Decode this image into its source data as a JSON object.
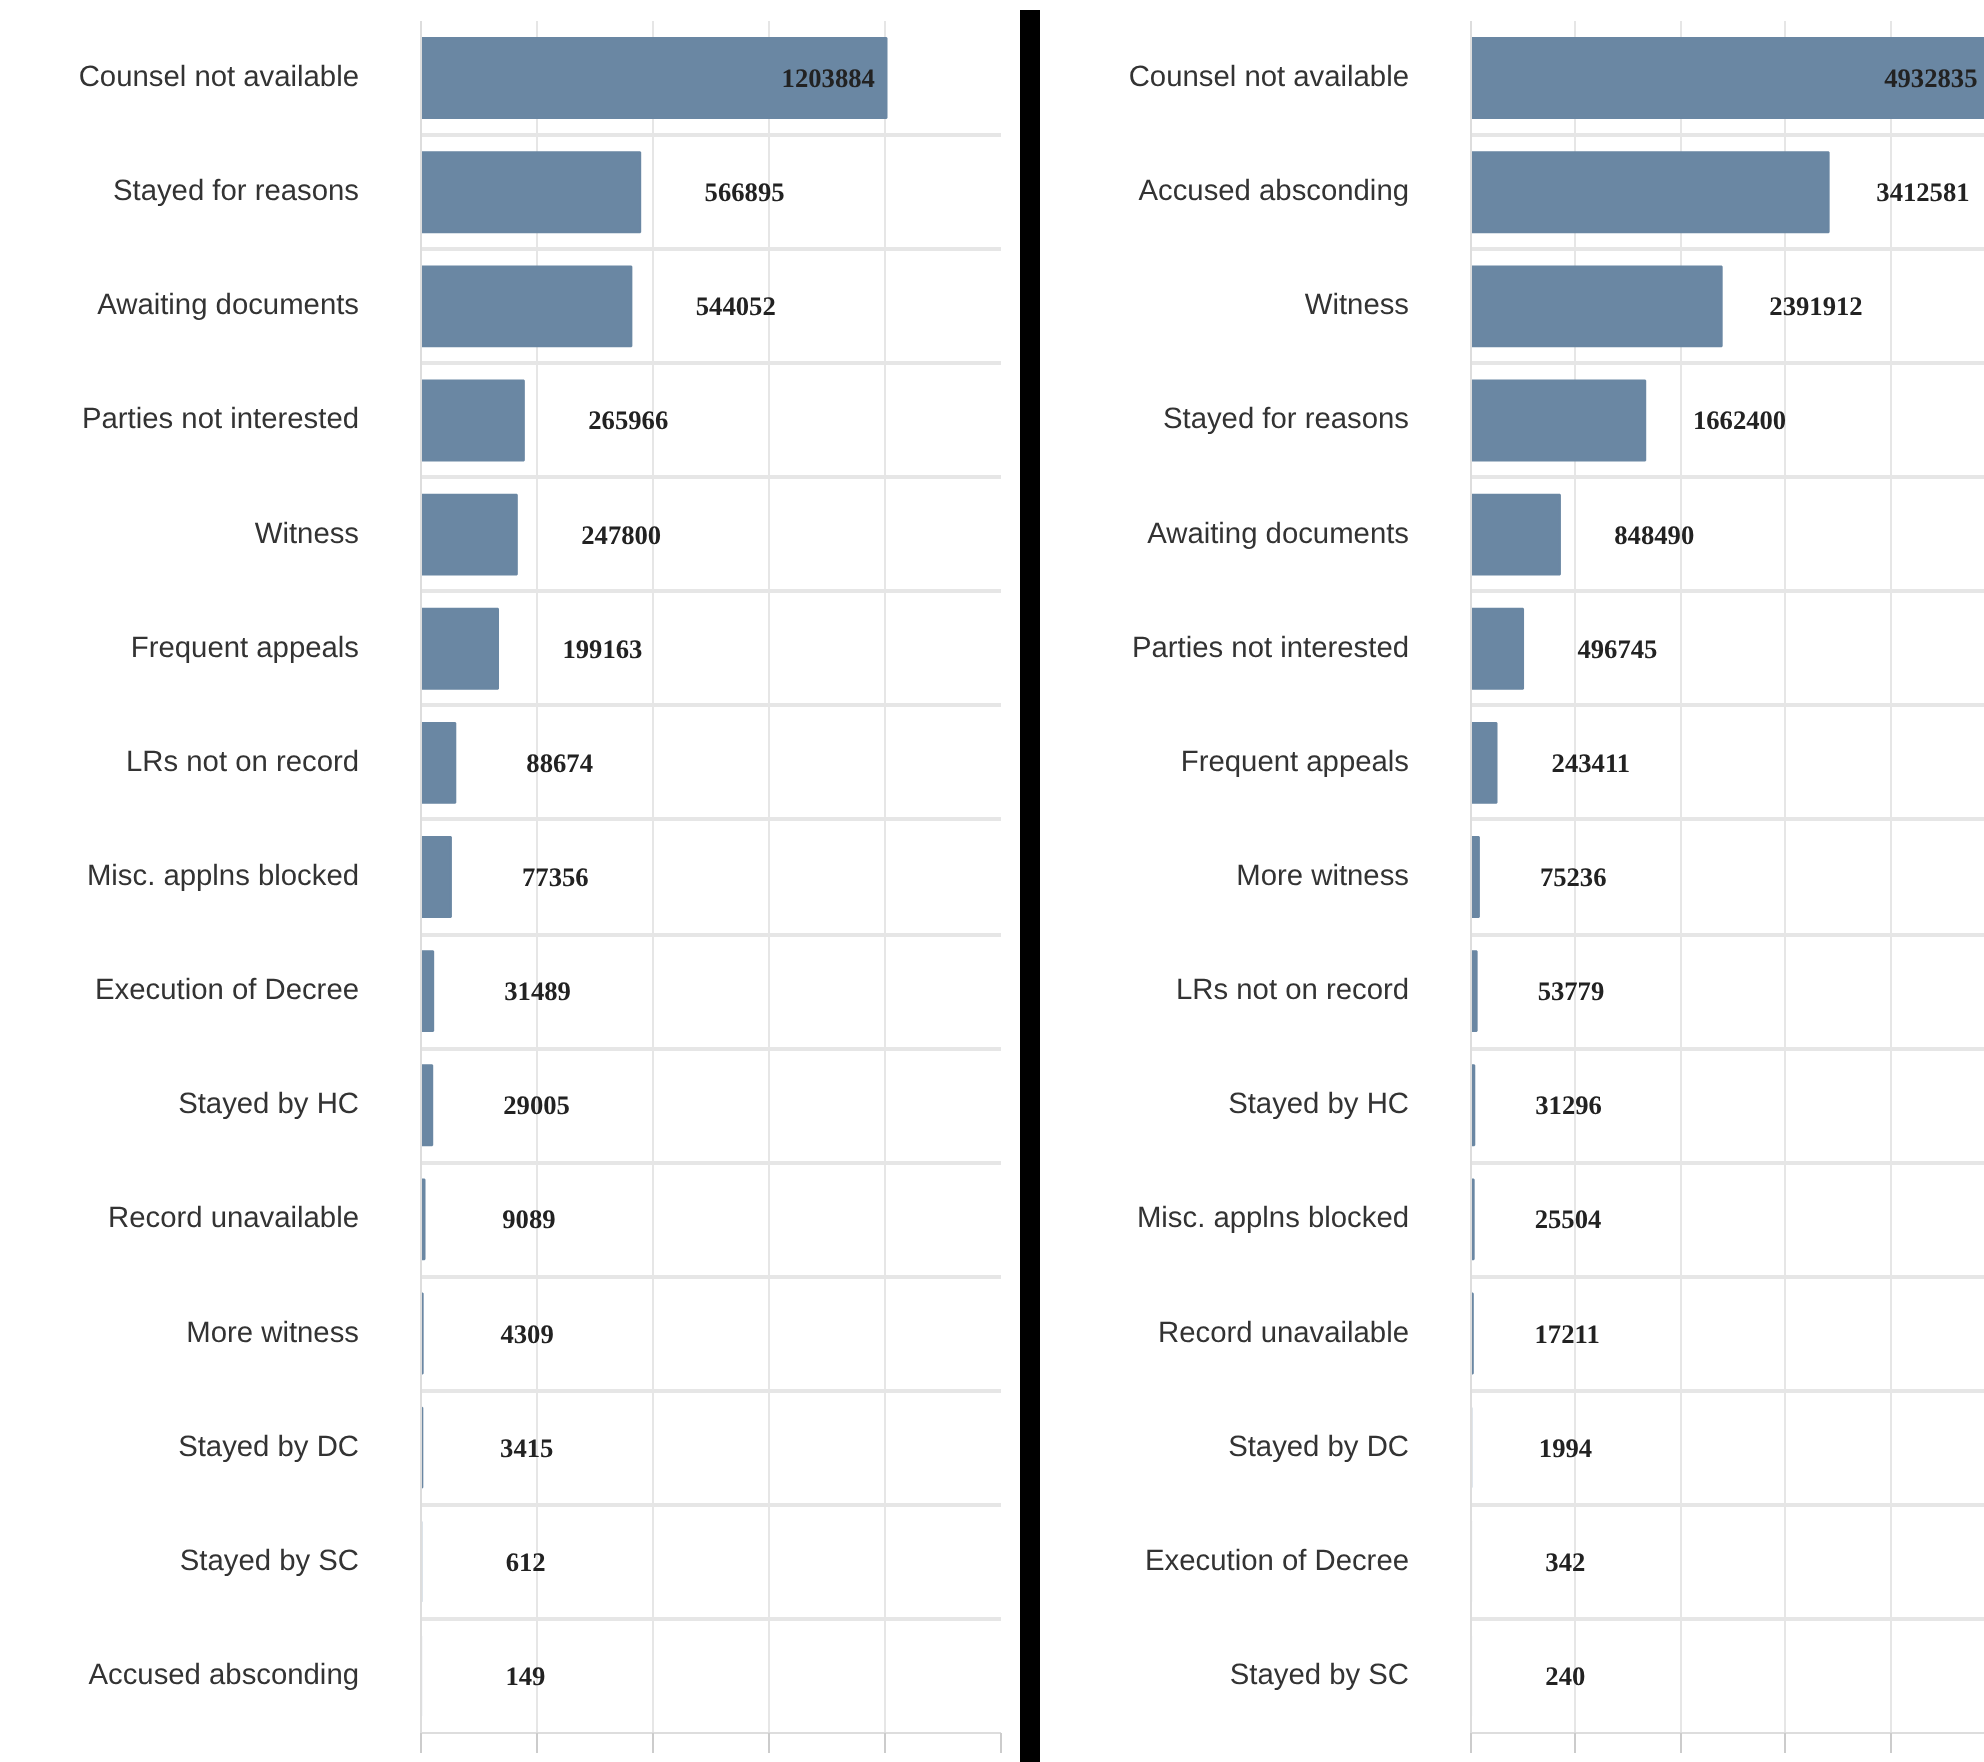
{
  "chart_data": [
    {
      "type": "bar",
      "orientation": "horizontal",
      "color": "#6a87a3",
      "data_labels": true,
      "grid": true,
      "tick_labels": "y",
      "categories": [
        "Counsel not available",
        "Stayed for reasons",
        "Awaiting documents",
        "Parties not interested",
        "Witness",
        "Frequent appeals",
        "LRs not on record",
        "Misc. applns blocked",
        "Execution of Decree",
        "Stayed by HC",
        "Record unavailable",
        "More witness",
        "Stayed by DC",
        "Stayed by SC",
        "Accused absconding"
      ],
      "values": [
        1203884,
        566895,
        544052,
        265966,
        247800,
        199163,
        88674,
        77356,
        31489,
        29005,
        9089,
        4309,
        3415,
        612,
        149
      ],
      "xlim": [
        0,
        1500000
      ],
      "xticks": [
        {
          "value": 0,
          "label": null
        },
        {
          "value": 300000,
          "label": null
        },
        {
          "value": 600000,
          "label": null
        },
        {
          "value": 900000,
          "label": null
        },
        {
          "value": 1200000,
          "label": null
        },
        {
          "value": 1500000,
          "label": null
        }
      ]
    },
    {
      "type": "bar",
      "orientation": "horizontal",
      "color": "#6a87a3",
      "data_labels": true,
      "grid": true,
      "tick_labels": "y",
      "categories": [
        "Counsel not available",
        "Accused absconding",
        "Witness",
        "Stayed for reasons",
        "Awaiting documents",
        "Parties not interested",
        "Frequent appeals",
        "More witness",
        "LRs not on record",
        "Stayed by HC",
        "Misc. applns blocked",
        "Record unavailable",
        "Stayed by DC",
        "Execution of Decree",
        "Stayed by SC"
      ],
      "values": [
        4932835,
        3412581,
        2391912,
        1662400,
        848490,
        496745,
        243411,
        75236,
        53779,
        31296,
        25504,
        17211,
        1994,
        342,
        240
      ],
      "xlim": [
        0,
        5000000
      ],
      "xticks": [
        {
          "value": 0,
          "label": null
        },
        {
          "value": 1000000,
          "label": null
        },
        {
          "value": 2000000,
          "label": null
        },
        {
          "value": 3000000,
          "label": null
        },
        {
          "value": 4000000,
          "label": null
        },
        {
          "value": 5000000,
          "label": null
        }
      ]
    }
  ]
}
